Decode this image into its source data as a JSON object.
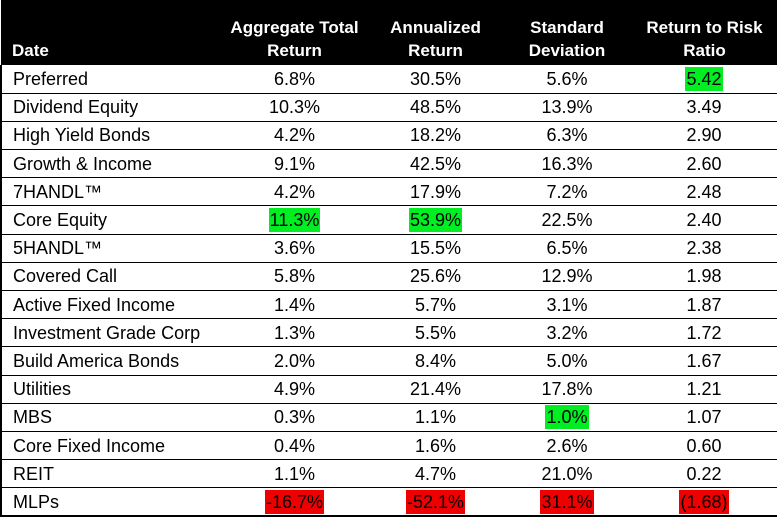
{
  "colors": {
    "header_bg": "#000000",
    "header_text": "#ffffff",
    "best": "#00ee22",
    "worst": "#ee0000"
  },
  "headers": {
    "date": "Date",
    "aggregate_line1": "Aggregate Total",
    "aggregate_line2": "Return",
    "annualized_line1": "Annualized",
    "annualized_line2": "Return",
    "stddev_line1": "Standard",
    "stddev_line2": "Deviation",
    "ratio_line1": "Return to Risk",
    "ratio_line2": "Ratio"
  },
  "rows": [
    {
      "name": "Preferred",
      "aggregate": "6.8%",
      "annualized": "30.5%",
      "stddev": "5.6%",
      "ratio": "5.42"
    },
    {
      "name": "Dividend Equity",
      "aggregate": "10.3%",
      "annualized": "48.5%",
      "stddev": "13.9%",
      "ratio": "3.49"
    },
    {
      "name": "High Yield Bonds",
      "aggregate": "4.2%",
      "annualized": "18.2%",
      "stddev": "6.3%",
      "ratio": "2.90"
    },
    {
      "name": "Growth & Income",
      "aggregate": "9.1%",
      "annualized": "42.5%",
      "stddev": "16.3%",
      "ratio": "2.60"
    },
    {
      "name": "7HANDL™",
      "aggregate": "4.2%",
      "annualized": "17.9%",
      "stddev": "7.2%",
      "ratio": "2.48"
    },
    {
      "name": "Core Equity",
      "aggregate": "11.3%",
      "annualized": "53.9%",
      "stddev": "22.5%",
      "ratio": "2.40"
    },
    {
      "name": "5HANDL™",
      "aggregate": "3.6%",
      "annualized": "15.5%",
      "stddev": "6.5%",
      "ratio": "2.38"
    },
    {
      "name": "Covered Call",
      "aggregate": "5.8%",
      "annualized": "25.6%",
      "stddev": "12.9%",
      "ratio": "1.98"
    },
    {
      "name": "Active Fixed Income",
      "aggregate": "1.4%",
      "annualized": "5.7%",
      "stddev": "3.1%",
      "ratio": "1.87"
    },
    {
      "name": "Investment Grade Corp",
      "aggregate": "1.3%",
      "annualized": "5.5%",
      "stddev": "3.2%",
      "ratio": "1.72"
    },
    {
      "name": "Build America Bonds",
      "aggregate": "2.0%",
      "annualized": "8.4%",
      "stddev": "5.0%",
      "ratio": "1.67"
    },
    {
      "name": "Utilities",
      "aggregate": "4.9%",
      "annualized": "21.4%",
      "stddev": "17.8%",
      "ratio": "1.21"
    },
    {
      "name": "MBS",
      "aggregate": "0.3%",
      "annualized": "1.1%",
      "stddev": "1.0%",
      "ratio": "1.07"
    },
    {
      "name": "Core Fixed Income",
      "aggregate": "0.4%",
      "annualized": "1.6%",
      "stddev": "2.6%",
      "ratio": "0.60"
    },
    {
      "name": "REIT",
      "aggregate": "1.1%",
      "annualized": "4.7%",
      "stddev": "21.0%",
      "ratio": "0.22"
    },
    {
      "name": "MLPs",
      "aggregate": "-16.7%",
      "annualized": "-52.1%",
      "stddev": "31.1%",
      "ratio": "(1.68)"
    }
  ]
}
